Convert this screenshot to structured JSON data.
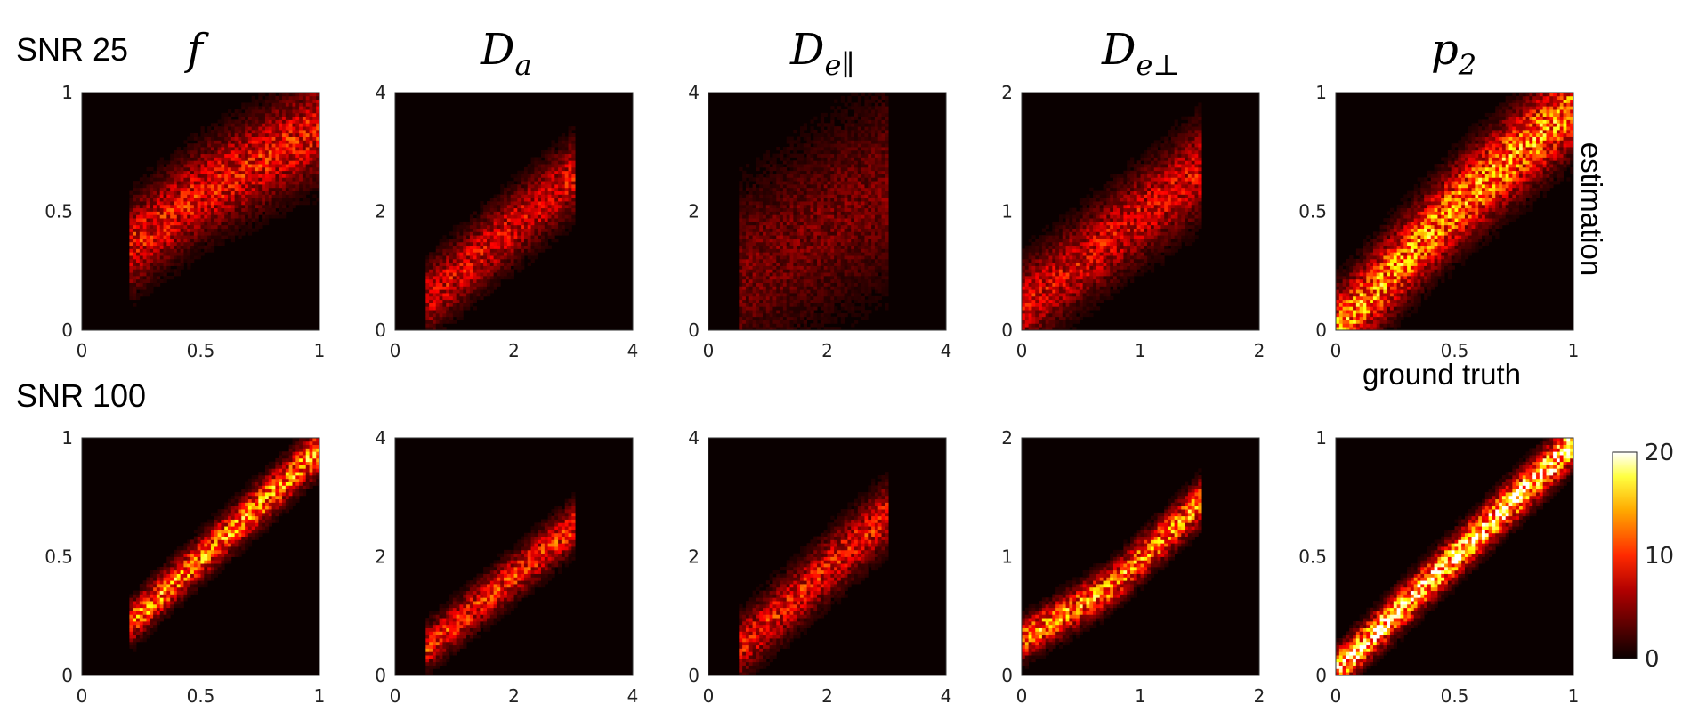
{
  "row_labels": [
    "SNR 25",
    "SNR 100"
  ],
  "estimation_label": "estimation",
  "ground_truth_label": "ground truth",
  "colorbar": {
    "ticks": [
      "0",
      "10",
      "20"
    ],
    "range": [
      0,
      20
    ],
    "colormap": "hot"
  },
  "chart_data": [
    {
      "type": "heatmap",
      "title": "f",
      "row": "SNR 25",
      "xlim": [
        0,
        1
      ],
      "ylim": [
        0,
        1
      ],
      "xticks": [
        "0",
        "0.5",
        "1"
      ],
      "yticks": [
        "0",
        "0.5",
        "1"
      ],
      "support_x": [
        0.2,
        1.0
      ],
      "ridge": [
        [
          0.2,
          0.35
        ],
        [
          0.5,
          0.58
        ],
        [
          1.0,
          0.85
        ]
      ],
      "spread": 0.11,
      "peak": 9
    },
    {
      "type": "heatmap",
      "title": "Da",
      "row": "SNR 25",
      "xlim": [
        0,
        4
      ],
      "ylim": [
        0,
        4
      ],
      "xticks": [
        "0",
        "2",
        "4"
      ],
      "yticks": [
        "0",
        "2",
        "4"
      ],
      "support_x": [
        0.5,
        3.0
      ],
      "ridge": [
        [
          0.5,
          0.5
        ],
        [
          3.0,
          2.6
        ]
      ],
      "spread": 0.35,
      "peak": 8
    },
    {
      "type": "heatmap",
      "title": "De∥",
      "row": "SNR 25",
      "xlim": [
        0,
        4
      ],
      "ylim": [
        0,
        4
      ],
      "xticks": [
        "0",
        "2",
        "4"
      ],
      "yticks": [
        "0",
        "2",
        "4"
      ],
      "support_x": [
        0.5,
        3.0
      ],
      "ridge": [
        [
          0.5,
          0.9
        ],
        [
          3.0,
          2.4
        ]
      ],
      "spread": 0.9,
      "peak": 4
    },
    {
      "type": "heatmap",
      "title": "De⊥",
      "row": "SNR 25",
      "xlim": [
        0,
        2
      ],
      "ylim": [
        0,
        2
      ],
      "xticks": [
        "0",
        "1",
        "2"
      ],
      "yticks": [
        "0",
        "1",
        "2"
      ],
      "support_x": [
        0.0,
        1.5
      ],
      "ridge": [
        [
          0.0,
          0.2
        ],
        [
          1.5,
          1.35
        ]
      ],
      "spread": 0.22,
      "peak": 8
    },
    {
      "type": "heatmap",
      "title": "p2",
      "row": "SNR 25",
      "xlim": [
        0,
        1
      ],
      "ylim": [
        0,
        1
      ],
      "xticks": [
        "0",
        "0.5",
        "1"
      ],
      "yticks": [
        "0",
        "0.5",
        "1"
      ],
      "support_x": [
        0.0,
        1.0
      ],
      "ridge": [
        [
          0.0,
          0.0
        ],
        [
          0.5,
          0.52
        ],
        [
          1.0,
          0.95
        ]
      ],
      "spread": 0.1,
      "peak": 14
    },
    {
      "type": "heatmap",
      "title": "f",
      "row": "SNR 100",
      "xlim": [
        0,
        1
      ],
      "ylim": [
        0,
        1
      ],
      "xticks": [
        "0",
        "0.5",
        "1"
      ],
      "yticks": [
        "0",
        "0.5",
        "1"
      ],
      "support_x": [
        0.2,
        1.0
      ],
      "ridge": [
        [
          0.2,
          0.22
        ],
        [
          1.0,
          0.95
        ]
      ],
      "spread": 0.05,
      "peak": 14
    },
    {
      "type": "heatmap",
      "title": "Da",
      "row": "SNR 100",
      "xlim": [
        0,
        4
      ],
      "ylim": [
        0,
        4
      ],
      "xticks": [
        "0",
        "2",
        "4"
      ],
      "yticks": [
        "0",
        "2",
        "4"
      ],
      "support_x": [
        0.5,
        3.0
      ],
      "ridge": [
        [
          0.5,
          0.45
        ],
        [
          3.0,
          2.5
        ]
      ],
      "spread": 0.22,
      "peak": 10
    },
    {
      "type": "heatmap",
      "title": "De∥",
      "row": "SNR 100",
      "xlim": [
        0,
        4
      ],
      "ylim": [
        0,
        4
      ],
      "xticks": [
        "0",
        "2",
        "4"
      ],
      "yticks": [
        "0",
        "2",
        "4"
      ],
      "support_x": [
        0.5,
        3.0
      ],
      "ridge": [
        [
          0.5,
          0.45
        ],
        [
          3.0,
          2.7
        ]
      ],
      "spread": 0.3,
      "peak": 9
    },
    {
      "type": "heatmap",
      "title": "De⊥",
      "row": "SNR 100",
      "xlim": [
        0,
        2
      ],
      "ylim": [
        0,
        2
      ],
      "xticks": [
        "0",
        "1",
        "2"
      ],
      "yticks": [
        "0",
        "1",
        "2"
      ],
      "support_x": [
        0.0,
        1.5
      ],
      "ridge": [
        [
          0.0,
          0.3
        ],
        [
          0.75,
          0.75
        ],
        [
          1.5,
          1.45
        ]
      ],
      "spread": 0.1,
      "peak": 14
    },
    {
      "type": "heatmap",
      "title": "p2",
      "row": "SNR 100",
      "xlim": [
        0,
        1
      ],
      "ylim": [
        0,
        1
      ],
      "xticks": [
        "0",
        "0.5",
        "1"
      ],
      "yticks": [
        "0",
        "0.5",
        "1"
      ],
      "support_x": [
        0.0,
        1.0
      ],
      "ridge": [
        [
          0.0,
          0.02
        ],
        [
          1.0,
          0.98
        ]
      ],
      "spread": 0.05,
      "peak": 20
    }
  ]
}
